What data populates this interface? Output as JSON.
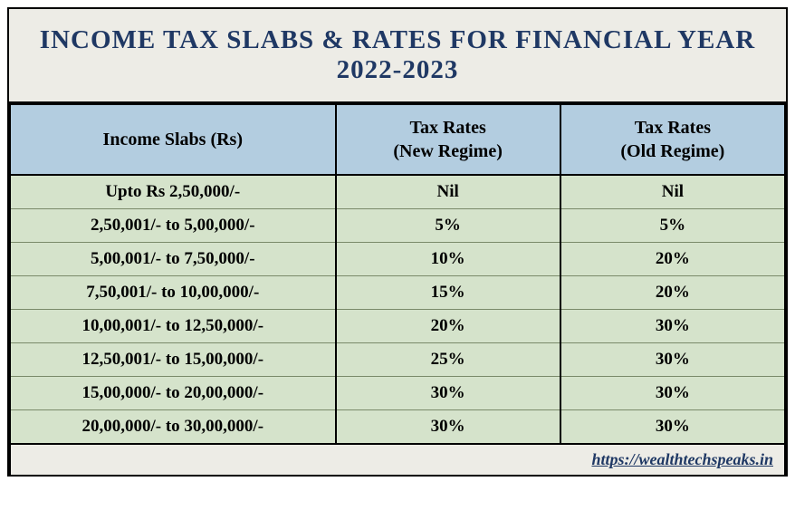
{
  "title": "INCOME TAX SLABS & RATES FOR FINANCIAL YEAR 2022-2023",
  "table": {
    "type": "table",
    "columns": [
      "Income Slabs (Rs)",
      "Tax Rates\n(New Regime)",
      "Tax Rates\n(Old Regime)"
    ],
    "rows": [
      [
        "Upto Rs 2,50,000/-",
        "Nil",
        "Nil"
      ],
      [
        "2,50,001/- to 5,00,000/-",
        "5%",
        "5%"
      ],
      [
        "5,00,001/- to 7,50,000/-",
        "10%",
        "20%"
      ],
      [
        "7,50,001/- to 10,00,000/-",
        "15%",
        "20%"
      ],
      [
        "10,00,001/- to 12,50,000/-",
        "20%",
        "30%"
      ],
      [
        "12,50,001/- to 15,00,000/-",
        "25%",
        "30%"
      ],
      [
        "15,00,000/- to 20,00,000/-",
        "30%",
        "30%"
      ],
      [
        "20,00,000/- to 30,00,000/-",
        "30%",
        "30%"
      ]
    ],
    "column_widths": [
      "42%",
      "29%",
      "29%"
    ],
    "header_bg": "#b3cde0",
    "cell_bg": "#d5e3cb",
    "title_bg": "#edece6",
    "border_color": "#000000",
    "row_divider_color": "#7a8a6a",
    "title_color": "#1f3864",
    "header_fontsize": 20,
    "cell_fontsize": 19,
    "title_fontsize": 29
  },
  "footer_url": "https://wealthtechspeaks.in"
}
